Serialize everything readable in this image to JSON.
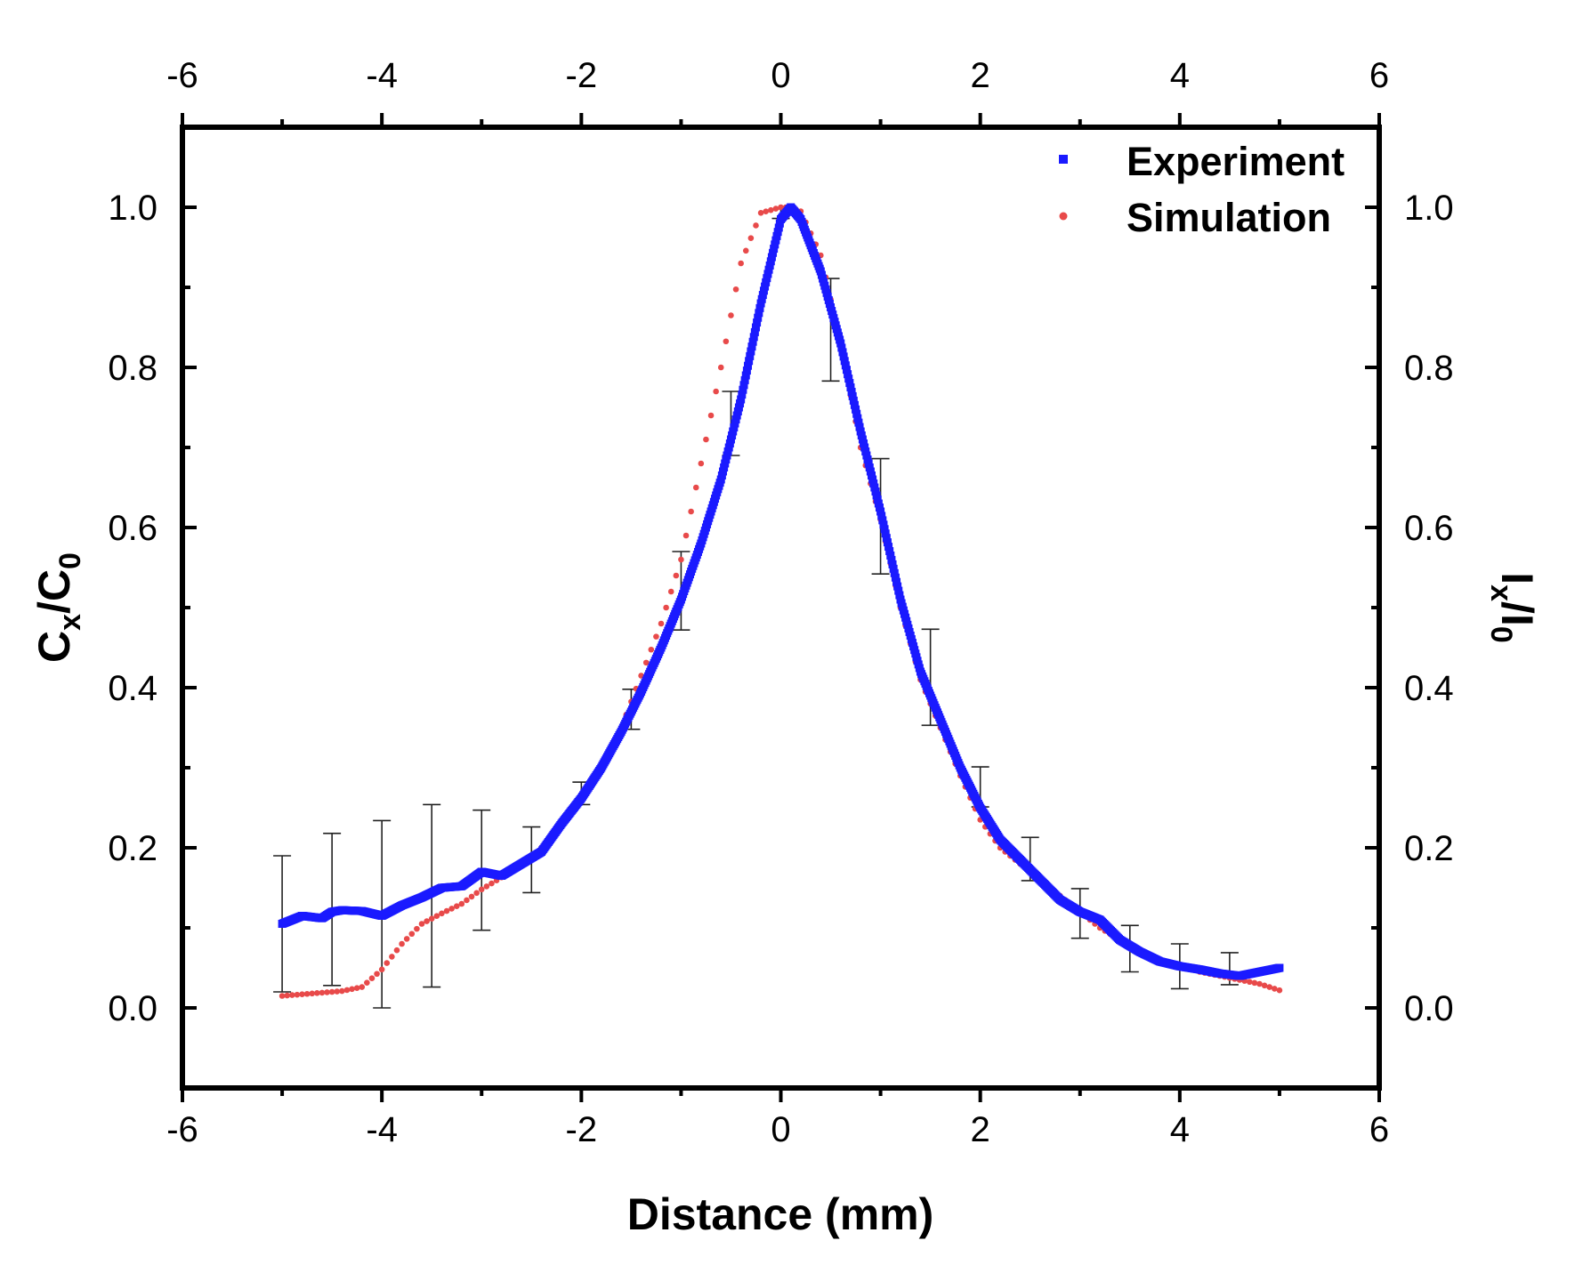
{
  "chart_data": {
    "type": "scatter",
    "title": "",
    "xlabel": "Distance (mm)",
    "ylabel_left": {
      "base": "C",
      "sub": "x",
      "slash": "/",
      "base2": "C",
      "sub2": "0"
    },
    "ylabel_right": {
      "base": "I",
      "sub": "x",
      "slash": "/",
      "base2": "I",
      "sub2": "0"
    },
    "xlim": [
      -6,
      6
    ],
    "ylim": [
      -0.1,
      1.1
    ],
    "x_ticks": [
      -6,
      -4,
      -2,
      0,
      2,
      4,
      6
    ],
    "x_tick_labels": [
      "-6",
      "-4",
      "-2",
      "0",
      "2",
      "4",
      "6"
    ],
    "y_ticks": [
      0.0,
      0.2,
      0.4,
      0.6,
      0.8,
      1.0
    ],
    "y_tick_labels": [
      "0.0",
      "0.2",
      "0.4",
      "0.6",
      "0.8",
      "1.0"
    ],
    "grid": false,
    "legend_position": "top-right",
    "legend": [
      {
        "label": "Experiment",
        "color": "#1a1aff",
        "marker": "square"
      },
      {
        "label": "Simulation",
        "color": "#e84a4a",
        "marker": "circle"
      }
    ],
    "series": [
      {
        "name": "Experiment",
        "color": "#1a1aff",
        "x": [
          -5.0,
          -4.8,
          -4.6,
          -4.5,
          -4.4,
          -4.2,
          -4.0,
          -3.8,
          -3.6,
          -3.4,
          -3.2,
          -3.0,
          -2.8,
          -2.6,
          -2.4,
          -2.2,
          -2.0,
          -1.8,
          -1.6,
          -1.4,
          -1.2,
          -1.0,
          -0.8,
          -0.6,
          -0.4,
          -0.2,
          0.0,
          0.1,
          0.2,
          0.4,
          0.6,
          0.8,
          1.0,
          1.2,
          1.4,
          1.6,
          1.8,
          2.0,
          2.2,
          2.4,
          2.6,
          2.8,
          3.0,
          3.2,
          3.4,
          3.6,
          3.8,
          4.0,
          4.2,
          4.4,
          4.6,
          4.8,
          5.0
        ],
        "y": [
          0.105,
          0.115,
          0.112,
          0.12,
          0.122,
          0.121,
          0.115,
          0.128,
          0.138,
          0.15,
          0.152,
          0.17,
          0.165,
          0.18,
          0.195,
          0.23,
          0.262,
          0.3,
          0.345,
          0.395,
          0.45,
          0.51,
          0.58,
          0.66,
          0.76,
          0.88,
          0.985,
          1.0,
          0.985,
          0.92,
          0.83,
          0.72,
          0.62,
          0.51,
          0.42,
          0.36,
          0.3,
          0.25,
          0.21,
          0.185,
          0.16,
          0.135,
          0.12,
          0.11,
          0.085,
          0.07,
          0.058,
          0.052,
          0.048,
          0.043,
          0.04,
          0.045,
          0.05
        ]
      },
      {
        "name": "Simulation",
        "color": "#e84a4a",
        "x": [
          -5.0,
          -4.8,
          -4.6,
          -4.4,
          -4.2,
          -4.0,
          -3.8,
          -3.6,
          -3.4,
          -3.2,
          -3.0,
          -2.8,
          -2.6,
          -2.4,
          -2.2,
          -2.0,
          -1.8,
          -1.6,
          -1.4,
          -1.2,
          -1.0,
          -0.8,
          -0.6,
          -0.4,
          -0.2,
          0.0,
          0.1,
          0.2,
          0.4,
          0.6,
          0.8,
          1.0,
          1.2,
          1.4,
          1.6,
          1.8,
          2.0,
          2.2,
          2.4,
          2.6,
          2.8,
          3.0,
          3.2,
          3.4,
          3.6,
          3.8,
          4.0,
          4.2,
          4.4,
          4.6,
          4.8,
          5.0
        ],
        "y": [
          0.015,
          0.017,
          0.019,
          0.021,
          0.026,
          0.048,
          0.08,
          0.105,
          0.118,
          0.13,
          0.148,
          0.163,
          0.178,
          0.2,
          0.232,
          0.26,
          0.3,
          0.35,
          0.415,
          0.48,
          0.56,
          0.68,
          0.8,
          0.93,
          0.993,
          1.0,
          1.0,
          0.995,
          0.94,
          0.83,
          0.7,
          0.61,
          0.5,
          0.41,
          0.35,
          0.29,
          0.235,
          0.2,
          0.18,
          0.16,
          0.14,
          0.12,
          0.1,
          0.085,
          0.07,
          0.06,
          0.053,
          0.045,
          0.04,
          0.035,
          0.03,
          0.022
        ]
      },
      {
        "name": "Experiment error",
        "color": "#000000",
        "x": [
          -5.0,
          -4.5,
          -4.0,
          -3.5,
          -3.0,
          -2.5,
          -2.0,
          -1.5,
          -1.0,
          -0.5,
          0.0,
          0.5,
          1.0,
          1.5,
          2.0,
          2.5,
          3.0,
          3.5,
          4.0,
          4.5
        ],
        "y": [
          0.105,
          0.123,
          0.117,
          0.14,
          0.172,
          0.185,
          0.268,
          0.373,
          0.521,
          0.73,
          0.992,
          0.847,
          0.614,
          0.413,
          0.276,
          0.186,
          0.118,
          0.074,
          0.052,
          0.049
        ],
        "err": [
          0.085,
          0.095,
          0.117,
          0.114,
          0.075,
          0.041,
          0.014,
          0.025,
          0.049,
          0.04,
          0.006,
          0.064,
          0.072,
          0.06,
          0.025,
          0.027,
          0.031,
          0.029,
          0.028,
          0.02
        ]
      }
    ]
  }
}
